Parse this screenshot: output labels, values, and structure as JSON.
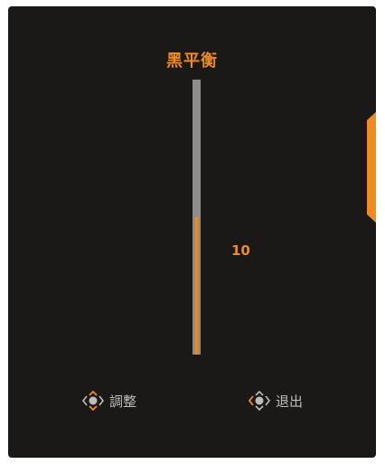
{
  "osd": {
    "title": "黑平衡",
    "value": "10",
    "level_fraction": 0.5
  },
  "hints": {
    "adjust_label": "調整",
    "exit_label": "退出"
  },
  "colors": {
    "accent": "#f08c1e",
    "background": "#1b1818",
    "track": "#8d8d8d",
    "hint_text": "#bdbdbd"
  },
  "icons": {
    "adjust": "joystick-updown-icon",
    "exit": "joystick-left-icon"
  }
}
